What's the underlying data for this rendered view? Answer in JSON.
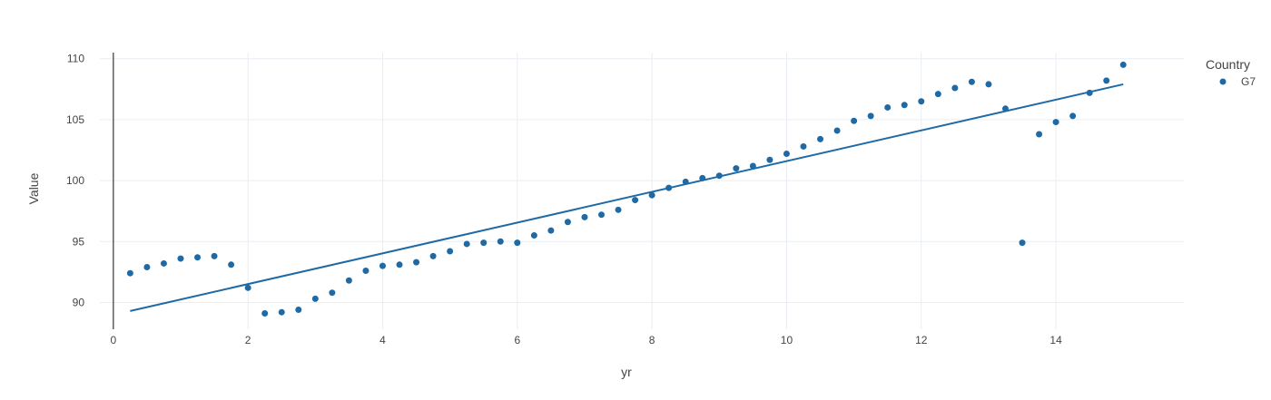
{
  "chart_data": {
    "type": "scatter",
    "xlabel": "yr",
    "ylabel": "Value",
    "xlim": [
      -0.2,
      15.9
    ],
    "ylim": [
      87.8,
      110.5
    ],
    "xticks": [
      0,
      2,
      4,
      6,
      8,
      10,
      12,
      14
    ],
    "yticks": [
      90,
      95,
      100,
      105,
      110
    ],
    "grid": true,
    "legend": {
      "title": "Country",
      "position": "top-right"
    },
    "colors": {
      "series": "#1f6aa5",
      "grid": "#e9eef3",
      "axis": "#444444",
      "zeroline": "#444444"
    },
    "series": [
      {
        "name": "G7",
        "x": [
          0.25,
          0.5,
          0.75,
          1.0,
          1.25,
          1.5,
          1.75,
          2.0,
          2.25,
          2.5,
          2.75,
          3.0,
          3.25,
          3.5,
          3.75,
          4.0,
          4.25,
          4.5,
          4.75,
          5.0,
          5.25,
          5.5,
          5.75,
          6.0,
          6.25,
          6.5,
          6.75,
          7.0,
          7.25,
          7.5,
          7.75,
          8.0,
          8.25,
          8.5,
          8.75,
          9.0,
          9.25,
          9.5,
          9.75,
          10.0,
          10.25,
          10.5,
          10.75,
          11.0,
          11.25,
          11.5,
          11.75,
          12.0,
          12.25,
          12.5,
          12.75,
          13.0,
          13.25,
          13.5,
          13.75,
          14.0,
          14.25,
          14.5,
          14.75,
          15.0
        ],
        "y": [
          92.4,
          92.9,
          93.2,
          93.6,
          93.7,
          93.8,
          93.1,
          91.2,
          89.1,
          89.2,
          89.4,
          90.3,
          90.8,
          91.8,
          92.6,
          93.0,
          93.1,
          93.3,
          93.8,
          94.2,
          94.8,
          94.9,
          95.0,
          94.9,
          95.5,
          95.9,
          96.6,
          97.0,
          97.2,
          97.6,
          98.4,
          98.8,
          99.4,
          99.9,
          100.2,
          100.4,
          101.0,
          101.2,
          101.7,
          102.2,
          102.8,
          103.4,
          104.1,
          104.9,
          105.3,
          106.0,
          106.2,
          106.5,
          107.1,
          107.6,
          108.1,
          107.9,
          105.9,
          94.9,
          103.8,
          104.8,
          105.3,
          107.2,
          108.2,
          109.5
        ]
      }
    ],
    "trendline": {
      "x": [
        0.25,
        15.0
      ],
      "y": [
        89.3,
        107.9
      ]
    }
  }
}
